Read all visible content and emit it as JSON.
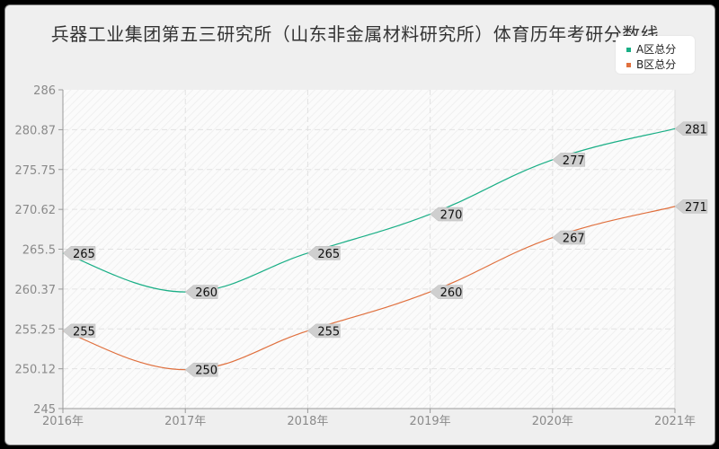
{
  "title": "兵器工业集团第五三研究所（山东非金属材料研究所）体育历年考研分数线",
  "legend": [
    {
      "label": "A区总分",
      "color": "#1aaf86"
    },
    {
      "label": "B区总分",
      "color": "#e0703e"
    }
  ],
  "chart_data": {
    "type": "line",
    "title": "兵器工业集团第五三研究所（山东非金属材料研究所）体育历年考研分数线",
    "xlabel": "",
    "ylabel": "",
    "categories": [
      "2016年",
      "2017年",
      "2018年",
      "2019年",
      "2020年",
      "2021年"
    ],
    "series": [
      {
        "name": "A区总分",
        "color": "#1aaf86",
        "values": [
          265,
          260,
          265,
          270,
          277,
          281
        ]
      },
      {
        "name": "B区总分",
        "color": "#e0703e",
        "values": [
          255,
          250,
          255,
          260,
          267,
          271
        ]
      }
    ],
    "yticks": [
      "245",
      "250.12",
      "255.25",
      "260.37",
      "265.5",
      "270.62",
      "275.75",
      "280.87",
      "286"
    ],
    "ylim": [
      245,
      286
    ],
    "grid": true,
    "legend_position": "top-right",
    "smooth": true,
    "data_labels": true
  }
}
